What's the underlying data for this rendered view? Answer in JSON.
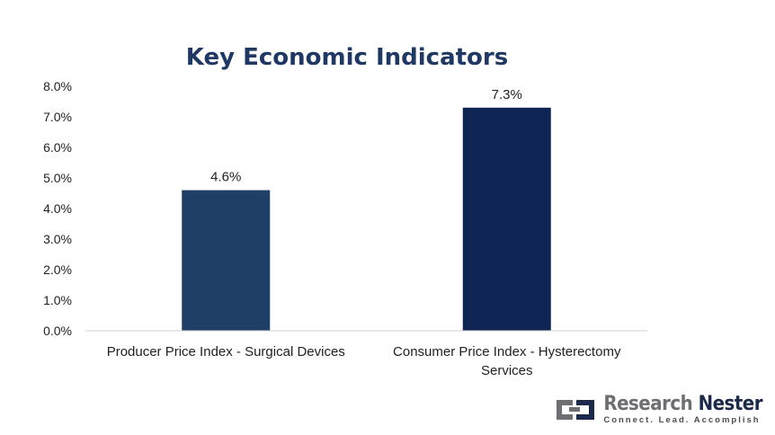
{
  "chart_data": {
    "type": "bar",
    "title": "Key Economic Indicators",
    "categories": [
      [
        "Producer Price Index - Surgical Devices"
      ],
      [
        "Consumer Price Index - Hysterectomy",
        "Services"
      ]
    ],
    "values": [
      4.6,
      7.3
    ],
    "value_labels": [
      "4.6%",
      "7.3%"
    ],
    "bar_colors": [
      "#1f3f66",
      "#0f2654"
    ],
    "ylim": [
      0,
      8
    ],
    "yticks": [
      "0.0%",
      "1.0%",
      "2.0%",
      "3.0%",
      "4.0%",
      "5.0%",
      "6.0%",
      "7.0%",
      "8.0%"
    ],
    "grid": false,
    "legend": "none"
  },
  "logo": {
    "name_part1": "Research",
    "name_part2": "Nester",
    "tagline": "Connect. Lead. Accomplish"
  }
}
